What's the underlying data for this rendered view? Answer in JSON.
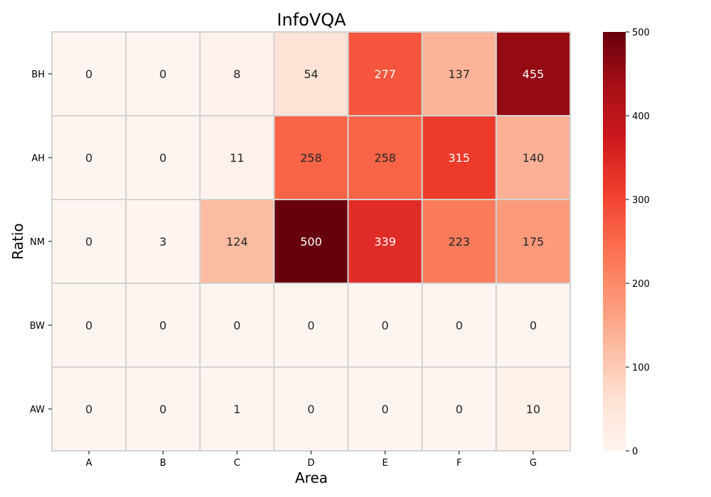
{
  "chart_data": {
    "type": "heatmap",
    "title": "InfoVQA",
    "xlabel": "Area",
    "ylabel": "Ratio",
    "x_categories": [
      "A",
      "B",
      "C",
      "D",
      "E",
      "F",
      "G"
    ],
    "y_categories": [
      "BH",
      "AH",
      "NM",
      "BW",
      "AW"
    ],
    "values": [
      [
        0,
        0,
        8,
        54,
        277,
        137,
        455
      ],
      [
        0,
        0,
        11,
        258,
        258,
        315,
        140
      ],
      [
        0,
        3,
        124,
        500,
        339,
        223,
        175
      ],
      [
        0,
        0,
        0,
        0,
        0,
        0,
        0
      ],
      [
        0,
        0,
        1,
        0,
        0,
        0,
        10
      ]
    ],
    "colorbar": {
      "min": 0,
      "max": 500,
      "ticks": [
        0,
        100,
        200,
        300,
        400,
        500
      ],
      "colormap": "Reds"
    },
    "cell_border_color": "#d3d3d3"
  }
}
